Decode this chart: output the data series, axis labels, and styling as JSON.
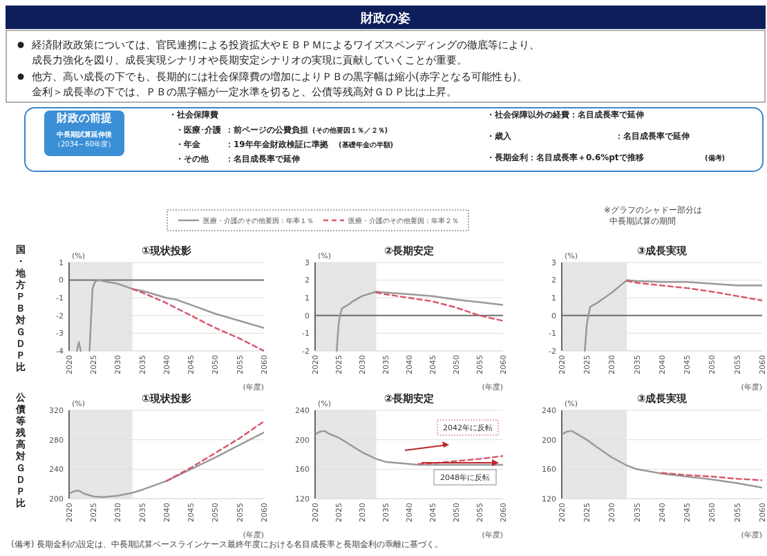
{
  "chart_data": [
    {
      "type": "other",
      "title": "財政の姿",
      "annotations": [
        "経済財政政策については、官民連携による投資拡大やＥＢＰＭによるワイズスペンディングの徹底等により、",
        "成長力強化を図り、成長実現シナリオや長期安定シナリオの実現に貢献していくことが重要。",
        "他方、高い成長の下でも、長期的には社会保障費の増加によりＰＢの黒字幅は縮小(赤字となる可能性も)。",
        "金利＞成長率の下では、ＰＢの黒字幅が一定水準を切ると、公債等残高対ＧＤＰ比は上昇。",
        "財政の前提",
        "中長期試算延伸後",
        "（2034～60年度）",
        "・社会保障費",
        "・医療･介護",
        "：前ページの公費負担",
        "(その他要因１％／２％)",
        "・年金",
        "：19年年金財政検証に準拠",
        "(基礎年金の半額)",
        "・その他",
        "：名目成長率で延伸",
        "・社会保障以外の経費：名目成長率で延伸",
        "・歳入",
        "：名目成長率で延伸",
        "・長期金利：名目成長率＋0.6%ptで推移",
        "(備考)",
        "※グラフのシャドー部分は",
        "中長期試算の期間",
        "(備考) 長期金利の設定は、中長期試算ベースラインケース最終年度における名目成長率と長期金利の乖離に基づく。"
      ]
    },
    {
      "type": "line",
      "title": "①現状投影",
      "ylabel": "国・地方ＰＢ対ＧＤＰ比",
      "xlabel": "(年度)",
      "annotations": [
        "(%)"
      ],
      "xlim": [
        2020,
        2060
      ],
      "xticks": [
        2020,
        2025,
        2030,
        2035,
        2040,
        2045,
        2050,
        2055,
        2060
      ],
      "ylim": [
        -4,
        1
      ],
      "yticks": [
        -4,
        -3,
        -2,
        -1,
        0,
        1
      ],
      "grid": "y",
      "legend": "top",
      "bands": [
        {
          "axis": "x",
          "from": 2020,
          "to": 2033,
          "color": "#e6e6e6"
        }
      ],
      "ref_lines": [
        {
          "axis": "y",
          "value": 0,
          "color": "#6e6e6e"
        }
      ],
      "series": [
        {
          "name": "医療・介護のその他要因：年率１％",
          "color": "#999999",
          "line_style": "solid",
          "x": [
            2021.6,
            2022,
            2022.4,
            2023,
            2024.2,
            2024.8,
            2025.3,
            2026,
            2028,
            2030,
            2033,
            2035,
            2040,
            2042,
            2045,
            2050,
            2055,
            2060
          ],
          "values": [
            -4,
            -3.5,
            -4,
            null,
            -4,
            -0.5,
            -0.1,
            0,
            -0.1,
            -0.2,
            -0.5,
            -0.6,
            -1,
            -1.1,
            -1.4,
            -1.9,
            -2.3,
            -2.7
          ]
        },
        {
          "name": "医療・介護のその他要因：年率２％",
          "color": "#d9596c",
          "line_style": "dashed",
          "x": [
            2033,
            2035,
            2040,
            2045,
            2050,
            2055,
            2060
          ],
          "values": [
            -0.5,
            -0.7,
            -1.3,
            -2,
            -2.7,
            -3.3,
            -4
          ]
        }
      ]
    },
    {
      "type": "line",
      "title": "②長期安定",
      "xlabel": "(年度)",
      "annotations": [
        "(%)"
      ],
      "xlim": [
        2020,
        2060
      ],
      "xticks": [
        2020,
        2025,
        2030,
        2035,
        2040,
        2045,
        2050,
        2055,
        2060
      ],
      "ylim": [
        -2,
        3
      ],
      "yticks": [
        -2,
        -1,
        0,
        1,
        2,
        3
      ],
      "grid": "y",
      "bands": [
        {
          "axis": "x",
          "from": 2020,
          "to": 2033,
          "color": "#e6e6e6"
        }
      ],
      "ref_lines": [
        {
          "axis": "y",
          "value": 0,
          "color": "#6e6e6e"
        }
      ],
      "series": [
        {
          "color": "#999999",
          "line_style": "solid",
          "x": [
            2024.6,
            2025,
            2025.3,
            2025.7,
            2027,
            2028,
            2030,
            2033,
            2035,
            2040,
            2045,
            2050,
            2055,
            2060
          ],
          "values": [
            -2,
            -0.5,
            0,
            0.4,
            0.6,
            0.8,
            1.1,
            1.35,
            1.3,
            1.2,
            1.1,
            0.9,
            0.75,
            0.6
          ]
        },
        {
          "color": "#d9596c",
          "line_style": "dashed",
          "x": [
            2033,
            2035,
            2040,
            2045,
            2050,
            2055,
            2060
          ],
          "values": [
            1.3,
            1.2,
            1,
            0.8,
            0.45,
            0,
            -0.3
          ]
        }
      ]
    },
    {
      "type": "line",
      "title": "③成長実現",
      "xlabel": "(年度)",
      "annotations": [
        "(%)"
      ],
      "xlim": [
        2020,
        2060
      ],
      "xticks": [
        2020,
        2025,
        2030,
        2035,
        2040,
        2045,
        2050,
        2055,
        2060
      ],
      "ylim": [
        -2,
        3
      ],
      "yticks": [
        -2,
        -1,
        0,
        1,
        2,
        3
      ],
      "grid": "y",
      "bands": [
        {
          "axis": "x",
          "from": 2020,
          "to": 2033,
          "color": "#e6e6e6"
        }
      ],
      "ref_lines": [
        {
          "axis": "y",
          "value": 0,
          "color": "#6e6e6e"
        }
      ],
      "series": [
        {
          "color": "#999999",
          "line_style": "solid",
          "x": [
            2024.6,
            2025,
            2025.3,
            2025.7,
            2027,
            2028,
            2030,
            2033,
            2035,
            2040,
            2045,
            2050,
            2055,
            2060
          ],
          "values": [
            -2,
            -0.5,
            0,
            0.5,
            0.7,
            0.9,
            1.3,
            2,
            1.95,
            1.9,
            1.9,
            1.8,
            1.7,
            1.7
          ]
        },
        {
          "color": "#d9596c",
          "line_style": "dashed",
          "x": [
            2033,
            2035,
            2040,
            2045,
            2050,
            2055,
            2060
          ],
          "values": [
            1.95,
            1.85,
            1.7,
            1.55,
            1.35,
            1.1,
            0.85
          ]
        }
      ]
    },
    {
      "type": "line",
      "title": "①現状投影",
      "ylabel": "公債等残高対ＧＤＰ比",
      "xlabel": "(年度)",
      "annotations": [
        "(%)"
      ],
      "xlim": [
        2020,
        2060
      ],
      "xticks": [
        2020,
        2025,
        2030,
        2035,
        2040,
        2045,
        2050,
        2055,
        2060
      ],
      "ylim": [
        200,
        320
      ],
      "yticks": [
        200,
        240,
        280,
        320
      ],
      "grid": "y",
      "bands": [
        {
          "axis": "x",
          "from": 2020,
          "to": 2033,
          "color": "#e6e6e6"
        }
      ],
      "series": [
        {
          "color": "#999999",
          "line_style": "solid",
          "x": [
            2020,
            2021,
            2022,
            2023,
            2025,
            2027,
            2030,
            2033,
            2035,
            2040,
            2045,
            2050,
            2055,
            2060
          ],
          "values": [
            207,
            210,
            211,
            207,
            203,
            202,
            204,
            208,
            212,
            224,
            240,
            256,
            273,
            290
          ]
        },
        {
          "color": "#d9596c",
          "line_style": "dashed",
          "x": [
            2040,
            2045,
            2050,
            2055,
            2060
          ],
          "values": [
            224,
            242,
            262,
            282,
            305
          ]
        }
      ]
    },
    {
      "type": "line",
      "title": "②長期安定",
      "xlabel": "(年度)",
      "annotations": [
        "(%)",
        "2042年に反転",
        "2048年に反転"
      ],
      "xlim": [
        2020,
        2060
      ],
      "xticks": [
        2020,
        2025,
        2030,
        2035,
        2040,
        2045,
        2050,
        2055,
        2060
      ],
      "ylim": [
        120,
        240
      ],
      "yticks": [
        120,
        160,
        200,
        240
      ],
      "grid": "y",
      "bands": [
        {
          "axis": "x",
          "from": 2020,
          "to": 2033,
          "color": "#e6e6e6"
        }
      ],
      "series": [
        {
          "color": "#999999",
          "line_style": "solid",
          "x": [
            2020,
            2021,
            2022,
            2023,
            2025,
            2027,
            2030,
            2033,
            2035,
            2040,
            2042,
            2045,
            2050,
            2055,
            2060
          ],
          "values": [
            207,
            211,
            212,
            208,
            203,
            195,
            183,
            174,
            170,
            167,
            166,
            166,
            166,
            166,
            166
          ]
        },
        {
          "color": "#d9596c",
          "line_style": "dashed",
          "x": [
            2042,
            2045,
            2050,
            2055,
            2060
          ],
          "values": [
            167,
            168,
            171,
            174,
            178
          ]
        }
      ]
    },
    {
      "type": "line",
      "title": "③成長実現",
      "xlabel": "(年度)",
      "annotations": [
        "(%)"
      ],
      "xlim": [
        2020,
        2060
      ],
      "xticks": [
        2020,
        2025,
        2030,
        2035,
        2040,
        2045,
        2050,
        2055,
        2060
      ],
      "ylim": [
        120,
        240
      ],
      "yticks": [
        120,
        160,
        200,
        240
      ],
      "grid": "y",
      "bands": [
        {
          "axis": "x",
          "from": 2020,
          "to": 2033,
          "color": "#e6e6e6"
        }
      ],
      "series": [
        {
          "color": "#999999",
          "line_style": "solid",
          "x": [
            2020,
            2021,
            2022,
            2023,
            2025,
            2027,
            2030,
            2033,
            2035,
            2040,
            2045,
            2050,
            2055,
            2060
          ],
          "values": [
            207,
            211,
            212,
            208,
            200,
            190,
            176,
            165,
            160,
            154,
            150,
            146,
            141,
            135
          ]
        },
        {
          "color": "#d9596c",
          "line_style": "dashed",
          "x": [
            2040,
            2045,
            2050,
            2055,
            2060
          ],
          "values": [
            155,
            152,
            150,
            147,
            145
          ]
        }
      ]
    }
  ]
}
